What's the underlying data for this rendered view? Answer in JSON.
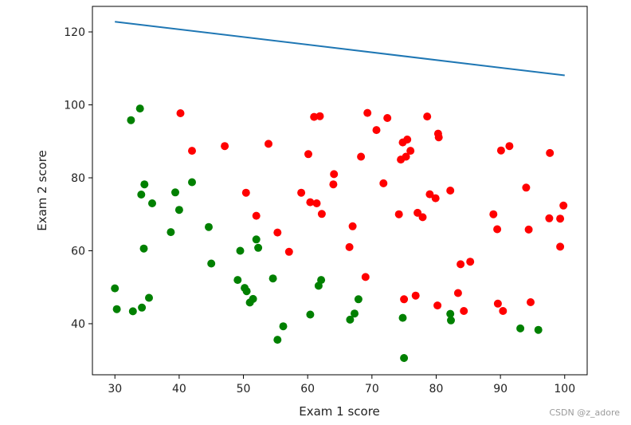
{
  "chart_data": {
    "type": "scatter",
    "xlabel": "Exam 1 score",
    "ylabel": "Exam 2 score",
    "xlim": [
      26.5,
      103.5
    ],
    "ylim": [
      26.0,
      127.0
    ],
    "xticks": [
      30,
      40,
      50,
      60,
      70,
      80,
      90,
      100
    ],
    "yticks": [
      40,
      60,
      80,
      100,
      120
    ],
    "grid": false,
    "series": [
      {
        "color": "#ff0000",
        "points": [
          [
            40.2,
            97.7
          ],
          [
            42.0,
            87.4
          ],
          [
            47.1,
            88.7
          ],
          [
            50.4,
            75.9
          ],
          [
            52.0,
            69.6
          ],
          [
            53.9,
            89.3
          ],
          [
            55.3,
            65.0
          ],
          [
            57.1,
            59.7
          ],
          [
            59.0,
            75.9
          ],
          [
            60.1,
            86.5
          ],
          [
            60.4,
            73.3
          ],
          [
            61.0,
            96.7
          ],
          [
            61.4,
            73.0
          ],
          [
            61.9,
            96.9
          ],
          [
            62.2,
            70.1
          ],
          [
            64.0,
            78.2
          ],
          [
            64.1,
            81.0
          ],
          [
            66.5,
            61.0
          ],
          [
            67.0,
            66.7
          ],
          [
            68.3,
            85.8
          ],
          [
            69.0,
            52.8
          ],
          [
            69.3,
            97.8
          ],
          [
            70.7,
            93.1
          ],
          [
            71.8,
            78.5
          ],
          [
            72.4,
            96.4
          ],
          [
            74.2,
            70.0
          ],
          [
            74.5,
            85.0
          ],
          [
            74.8,
            89.7
          ],
          [
            75.0,
            46.7
          ],
          [
            75.3,
            85.8
          ],
          [
            75.5,
            90.5
          ],
          [
            76.0,
            87.4
          ],
          [
            76.8,
            47.7
          ],
          [
            77.1,
            70.4
          ],
          [
            77.9,
            69.2
          ],
          [
            78.6,
            96.8
          ],
          [
            79.0,
            75.5
          ],
          [
            79.9,
            74.4
          ],
          [
            80.2,
            45.0
          ],
          [
            80.3,
            92.1
          ],
          [
            80.4,
            91.1
          ],
          [
            82.2,
            76.5
          ],
          [
            83.4,
            48.4
          ],
          [
            83.8,
            56.3
          ],
          [
            84.3,
            43.5
          ],
          [
            85.3,
            57.0
          ],
          [
            88.9,
            70.0
          ],
          [
            89.5,
            65.9
          ],
          [
            89.6,
            45.5
          ],
          [
            90.1,
            87.5
          ],
          [
            90.4,
            43.5
          ],
          [
            91.4,
            88.7
          ],
          [
            94.0,
            77.3
          ],
          [
            94.4,
            65.8
          ],
          [
            94.7,
            45.9
          ],
          [
            97.6,
            68.9
          ],
          [
            97.7,
            86.8
          ],
          [
            99.3,
            68.8
          ],
          [
            99.3,
            61.1
          ],
          [
            99.8,
            72.4
          ]
        ]
      },
      {
        "color": "#008000",
        "points": [
          [
            30.0,
            49.7
          ],
          [
            30.3,
            44.0
          ],
          [
            32.5,
            95.8
          ],
          [
            32.8,
            43.4
          ],
          [
            33.9,
            99.0
          ],
          [
            34.1,
            75.4
          ],
          [
            34.2,
            44.4
          ],
          [
            34.5,
            60.6
          ],
          [
            34.6,
            78.2
          ],
          [
            35.3,
            47.1
          ],
          [
            35.8,
            73.0
          ],
          [
            38.7,
            65.1
          ],
          [
            39.4,
            76.0
          ],
          [
            40.0,
            71.2
          ],
          [
            42.0,
            78.8
          ],
          [
            44.6,
            66.5
          ],
          [
            45.0,
            56.5
          ],
          [
            49.1,
            52.0
          ],
          [
            49.5,
            60.0
          ],
          [
            50.2,
            49.8
          ],
          [
            50.5,
            48.9
          ],
          [
            51.0,
            45.8
          ],
          [
            51.5,
            46.8
          ],
          [
            52.0,
            63.1
          ],
          [
            52.3,
            60.8
          ],
          [
            54.6,
            52.4
          ],
          [
            55.3,
            35.6
          ],
          [
            56.2,
            39.3
          ],
          [
            60.4,
            42.5
          ],
          [
            61.7,
            50.4
          ],
          [
            62.1,
            52.0
          ],
          [
            66.6,
            41.1
          ],
          [
            67.3,
            42.8
          ],
          [
            67.9,
            46.7
          ],
          [
            74.8,
            41.6
          ],
          [
            75.0,
            30.6
          ],
          [
            82.2,
            42.7
          ],
          [
            82.3,
            40.9
          ],
          [
            93.1,
            38.7
          ],
          [
            95.9,
            38.3
          ]
        ]
      }
    ],
    "line": {
      "color": "#1f77b4",
      "x": [
        30,
        100
      ],
      "y": [
        122.8,
        108.1
      ]
    }
  },
  "watermark": "CSDN @z_adore"
}
